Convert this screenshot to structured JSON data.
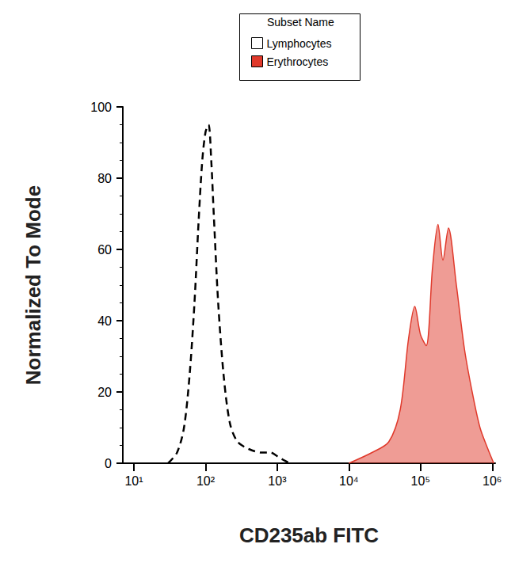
{
  "chart_data": {
    "type": "line",
    "x_label": "CD235ab FITC",
    "y_label": "Normalized To Mode",
    "legend_title": "Subset Name",
    "legend": "top",
    "log": "x",
    "grid": false,
    "xlim": [
      7,
      1100000
    ],
    "xticks": [
      {
        "value": 10,
        "label": "10¹"
      },
      {
        "value": 100,
        "label": "10²"
      },
      {
        "value": 1000,
        "label": "10³"
      },
      {
        "value": 10000,
        "label": "10⁴"
      },
      {
        "value": 100000,
        "label": "10⁵"
      },
      {
        "value": 1000000,
        "label": "10⁶"
      }
    ],
    "ylim": [
      0,
      100
    ],
    "yticks": [
      0,
      20,
      40,
      60,
      80,
      100
    ],
    "series": [
      {
        "name": "Lymphocytes",
        "type": "line",
        "line_style": "dashed",
        "color": "#000000",
        "x": [
          30,
          40,
          50,
          60,
          70,
          80,
          90,
          100,
          110,
          120,
          130,
          150,
          180,
          220,
          280,
          400,
          600,
          800,
          1000,
          1200,
          1500
        ],
        "values": [
          0,
          3,
          10,
          25,
          45,
          68,
          85,
          93,
          95,
          85,
          70,
          45,
          24,
          11,
          6,
          4,
          3,
          3,
          2,
          1,
          0
        ]
      },
      {
        "name": "Erythrocytes",
        "type": "area",
        "line_style": "solid",
        "color": "#e0392b",
        "x": [
          10000,
          21000,
          36000,
          52000,
          68000,
          83000,
          100000,
          120000,
          147000,
          175000,
          205000,
          245000,
          316000,
          410000,
          525000,
          675000,
          870000,
          1050000
        ],
        "values": [
          0,
          3,
          6,
          15,
          35,
          44,
          36,
          33,
          55,
          67,
          57,
          66,
          50,
          32,
          20,
          10,
          4,
          0
        ]
      }
    ]
  }
}
